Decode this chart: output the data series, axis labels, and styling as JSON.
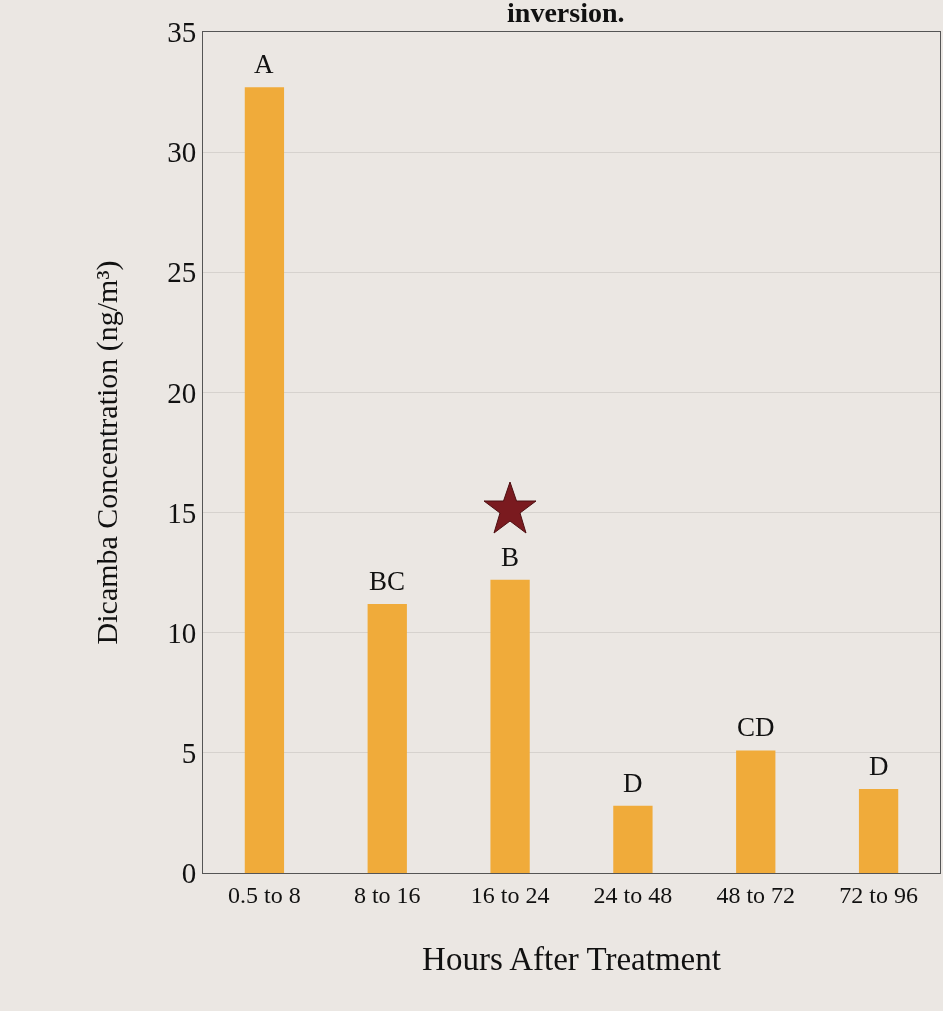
{
  "chart_data": {
    "type": "bar",
    "title": "inversion.",
    "xlabel": "Hours After Treatment",
    "ylabel": "Dicamba Concentration (ng/m³)",
    "categories": [
      "0.5 to 8",
      "8 to 16",
      "16 to 24",
      "24 to 48",
      "48 to 72",
      "72 to 96"
    ],
    "values": [
      32.7,
      11.2,
      12.2,
      2.8,
      5.1,
      3.5
    ],
    "color": "#f0ab3a",
    "ylim": [
      0,
      35
    ],
    "yticks": [
      0,
      5,
      10,
      15,
      20,
      25,
      30,
      35
    ],
    "grid": "y",
    "annotations": [
      {
        "text": "A",
        "x": "0.5 to 8",
        "y": 32.7
      },
      {
        "text": "BC",
        "x": "8 to 16",
        "y": 11.2
      },
      {
        "text": "B",
        "x": "16 to 24",
        "y": 12.2
      },
      {
        "text": "D",
        "x": "24 to 48",
        "y": 2.8
      },
      {
        "text": "CD",
        "x": "48 to 72",
        "y": 5.1
      },
      {
        "text": "D",
        "x": "72 to 96",
        "y": 3.5
      }
    ]
  }
}
